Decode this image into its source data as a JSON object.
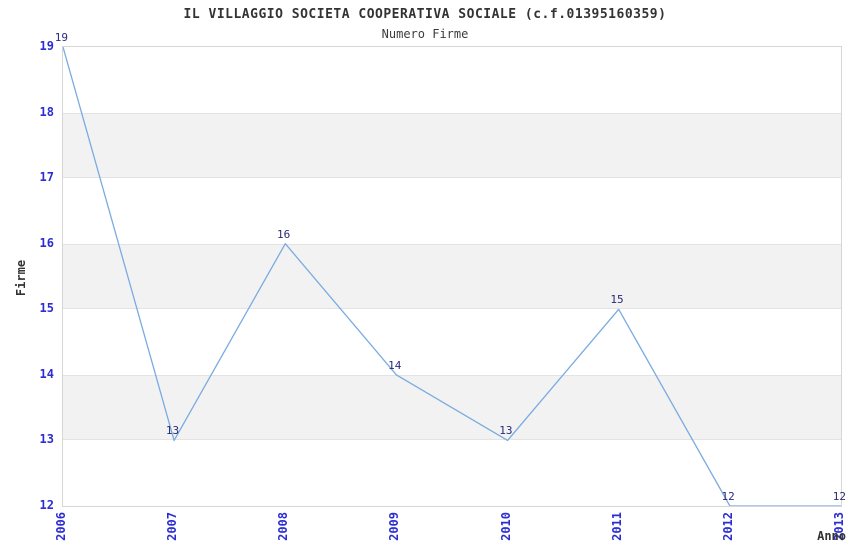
{
  "chart_data": {
    "type": "line",
    "title": "IL VILLAGGIO SOCIETA COOPERATIVA SOCIALE (c.f.01395160359)",
    "subtitle": "Numero Firme",
    "xlabel": "Anno",
    "ylabel": "Firme",
    "categories": [
      "2006",
      "2007",
      "2008",
      "2009",
      "2010",
      "2011",
      "2012",
      "2013"
    ],
    "series": [
      {
        "name": "Numero Firme",
        "values": [
          19,
          13,
          16,
          14,
          13,
          15,
          12,
          12
        ]
      }
    ],
    "point_labels": [
      "19",
      "13",
      "16",
      "14",
      "13",
      "15",
      "12",
      "12"
    ],
    "ylim": [
      12,
      19
    ],
    "yticks": [
      12,
      13,
      14,
      15,
      16,
      17,
      18,
      19
    ],
    "shaded_bands": [
      [
        13,
        14
      ],
      [
        15,
        16
      ],
      [
        17,
        18
      ]
    ],
    "grid": "horizontal-band-edges-only",
    "legend_position": "none",
    "x_tick_rotation_deg": 90,
    "colors": {
      "line": "#7aabe0",
      "tick_label": "#2d2dd2",
      "point_label": "#2a2a78",
      "band_fill": "#f2f2f2",
      "band_edge": "#e3e3e3",
      "plot_border": "#d6d6d6",
      "text": "#333333",
      "background": "#ffffff"
    }
  }
}
